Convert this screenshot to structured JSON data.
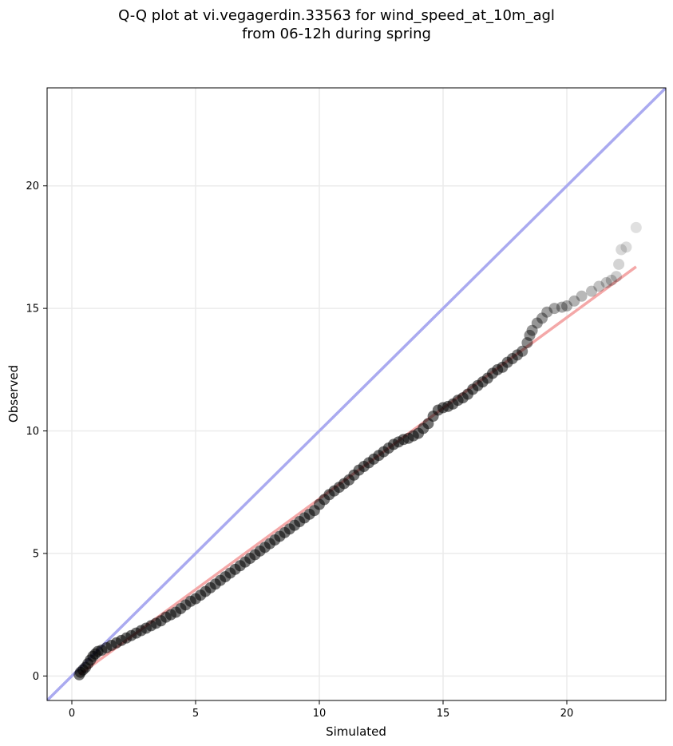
{
  "chart_data": {
    "type": "scatter",
    "title": "Q-Q plot at vi.vegagerdin.33563 for wind_speed_at_10m_agl",
    "subtitle": "from 06-12h during spring",
    "xlabel": "Simulated",
    "ylabel": "Observed",
    "xlim": [
      -1,
      24
    ],
    "ylim": [
      -1,
      24
    ],
    "xticks": [
      0,
      5,
      10,
      15,
      20
    ],
    "yticks": [
      0,
      5,
      10,
      15,
      20
    ],
    "grid": true,
    "colors": {
      "points": "#000000",
      "identity_line": "#aaaaf0",
      "fit_line": "#f4a8a8",
      "grid": "#ebebeb"
    },
    "identity_line": {
      "x": [
        -1,
        24
      ],
      "y": [
        -1,
        24
      ]
    },
    "fit_line": {
      "x": [
        0.3,
        22.8
      ],
      "y": [
        0.05,
        16.7
      ]
    },
    "series": [
      {
        "points": [
          [
            0.3,
            0.05
          ],
          [
            0.35,
            0.15
          ],
          [
            0.45,
            0.25
          ],
          [
            0.55,
            0.35
          ],
          [
            0.65,
            0.5
          ],
          [
            0.75,
            0.65
          ],
          [
            0.85,
            0.8
          ],
          [
            0.95,
            0.9
          ],
          [
            1.05,
            1.0
          ],
          [
            1.2,
            1.05
          ],
          [
            1.4,
            1.15
          ],
          [
            1.6,
            1.25
          ],
          [
            1.8,
            1.35
          ],
          [
            2.0,
            1.45
          ],
          [
            2.2,
            1.55
          ],
          [
            2.4,
            1.65
          ],
          [
            2.6,
            1.75
          ],
          [
            2.8,
            1.85
          ],
          [
            3.0,
            1.95
          ],
          [
            3.2,
            2.05
          ],
          [
            3.4,
            2.15
          ],
          [
            3.6,
            2.25
          ],
          [
            3.8,
            2.4
          ],
          [
            4.0,
            2.5
          ],
          [
            4.2,
            2.6
          ],
          [
            4.4,
            2.75
          ],
          [
            4.6,
            2.9
          ],
          [
            4.8,
            3.05
          ],
          [
            5.0,
            3.15
          ],
          [
            5.2,
            3.3
          ],
          [
            5.4,
            3.45
          ],
          [
            5.6,
            3.6
          ],
          [
            5.8,
            3.75
          ],
          [
            6.0,
            3.9
          ],
          [
            6.2,
            4.05
          ],
          [
            6.4,
            4.2
          ],
          [
            6.6,
            4.35
          ],
          [
            6.8,
            4.5
          ],
          [
            7.0,
            4.65
          ],
          [
            7.2,
            4.8
          ],
          [
            7.4,
            4.95
          ],
          [
            7.6,
            5.1
          ],
          [
            7.8,
            5.25
          ],
          [
            8.0,
            5.4
          ],
          [
            8.2,
            5.55
          ],
          [
            8.4,
            5.7
          ],
          [
            8.6,
            5.85
          ],
          [
            8.8,
            6.0
          ],
          [
            9.0,
            6.15
          ],
          [
            9.2,
            6.3
          ],
          [
            9.4,
            6.45
          ],
          [
            9.6,
            6.6
          ],
          [
            9.8,
            6.75
          ],
          [
            10.0,
            7.0
          ],
          [
            10.2,
            7.2
          ],
          [
            10.4,
            7.4
          ],
          [
            10.6,
            7.55
          ],
          [
            10.8,
            7.7
          ],
          [
            11.0,
            7.85
          ],
          [
            11.2,
            8.0
          ],
          [
            11.4,
            8.2
          ],
          [
            11.6,
            8.4
          ],
          [
            11.8,
            8.55
          ],
          [
            12.0,
            8.7
          ],
          [
            12.2,
            8.85
          ],
          [
            12.4,
            9.0
          ],
          [
            12.6,
            9.15
          ],
          [
            12.8,
            9.3
          ],
          [
            13.0,
            9.45
          ],
          [
            13.2,
            9.55
          ],
          [
            13.4,
            9.65
          ],
          [
            13.6,
            9.7
          ],
          [
            13.8,
            9.8
          ],
          [
            14.0,
            9.9
          ],
          [
            14.2,
            10.1
          ],
          [
            14.4,
            10.3
          ],
          [
            14.6,
            10.6
          ],
          [
            14.8,
            10.85
          ],
          [
            15.0,
            10.95
          ],
          [
            15.2,
            11.0
          ],
          [
            15.4,
            11.1
          ],
          [
            15.6,
            11.25
          ],
          [
            15.8,
            11.35
          ],
          [
            16.0,
            11.5
          ],
          [
            16.2,
            11.7
          ],
          [
            16.4,
            11.85
          ],
          [
            16.6,
            12.0
          ],
          [
            16.8,
            12.15
          ],
          [
            17.0,
            12.35
          ],
          [
            17.2,
            12.5
          ],
          [
            17.4,
            12.6
          ],
          [
            17.6,
            12.8
          ],
          [
            17.8,
            12.95
          ],
          [
            18.0,
            13.1
          ],
          [
            18.2,
            13.25
          ],
          [
            18.4,
            13.6
          ],
          [
            18.5,
            13.9
          ],
          [
            18.6,
            14.1
          ],
          [
            18.8,
            14.4
          ],
          [
            19.0,
            14.6
          ],
          [
            19.2,
            14.85
          ],
          [
            19.5,
            15.0
          ],
          [
            19.8,
            15.05
          ],
          [
            20.0,
            15.1
          ],
          [
            20.3,
            15.3
          ],
          [
            20.6,
            15.5
          ],
          [
            21.0,
            15.7
          ],
          [
            21.3,
            15.9
          ],
          [
            21.6,
            16.05
          ],
          [
            21.8,
            16.15
          ],
          [
            22.0,
            16.3
          ],
          [
            22.1,
            16.8
          ],
          [
            22.2,
            17.4
          ],
          [
            22.4,
            17.5
          ],
          [
            22.8,
            18.3
          ]
        ]
      }
    ]
  }
}
